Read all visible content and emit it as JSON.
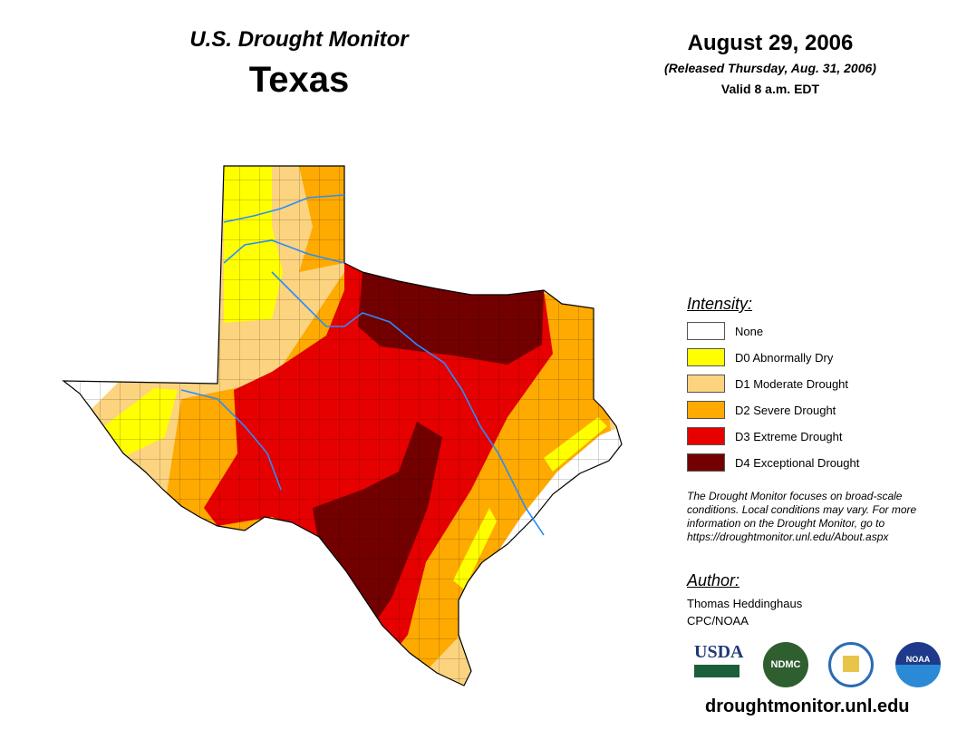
{
  "header": {
    "title": "U.S. Drought Monitor",
    "state": "Texas",
    "date": "August 29, 2006",
    "released": "(Released Thursday, Aug. 31, 2006)",
    "valid": "Valid 8 a.m. EDT"
  },
  "legend": {
    "heading": "Intensity:",
    "items": [
      {
        "label": "None",
        "color": "#ffffff"
      },
      {
        "label": "D0 Abnormally Dry",
        "color": "#ffff00"
      },
      {
        "label": "D1 Moderate Drought",
        "color": "#fcd37f"
      },
      {
        "label": "D2 Severe Drought",
        "color": "#ffaa00"
      },
      {
        "label": "D3 Extreme Drought",
        "color": "#e60000"
      },
      {
        "label": "D4 Exceptional Drought",
        "color": "#730000"
      }
    ]
  },
  "note": "The Drought Monitor focuses on broad-scale conditions. Local conditions may vary. For more information on the Drought Monitor, go to https://droughtmonitor.unl.edu/About.aspx",
  "author": {
    "heading": "Author:",
    "name": "Thomas Heddinghaus",
    "org": "CPC/NOAA"
  },
  "logos": {
    "usda": "USDA",
    "ndmc": "NDMC",
    "noaa": "NOAA"
  },
  "footer_url": "droughtmonitor.unl.edu"
}
